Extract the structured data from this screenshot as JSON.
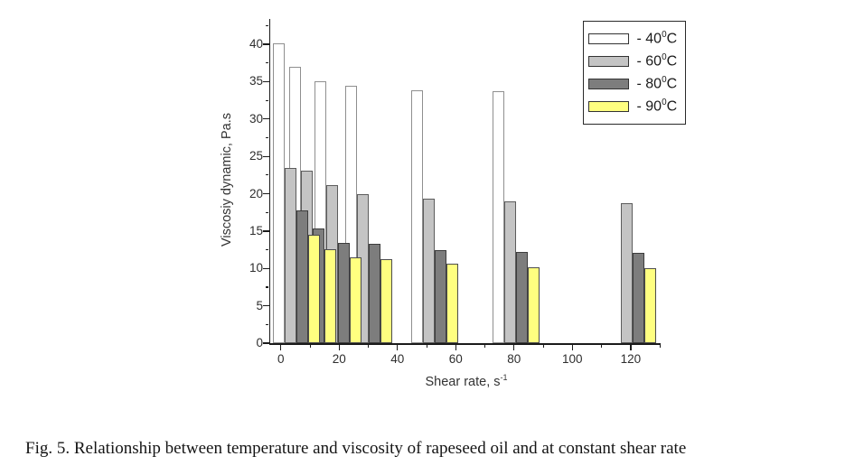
{
  "figure": {
    "caption": "Fig. 5. Relationship between temperature and viscosity of rapeseed oil and at constant shear rate"
  },
  "chart_data": {
    "type": "bar",
    "title": "",
    "xlabel": {
      "base": "Shear rate, s",
      "sup": "-1"
    },
    "ylabel": "Viscosiy dynamic, Pa.s",
    "x": [
      5.4,
      10.8,
      19.5,
      30.2,
      52.8,
      80.5,
      120.5
    ],
    "series": [
      {
        "id": "40C",
        "label": {
          "prefix": "- ",
          "value": "40",
          "sup": "0",
          "suffix": "C"
        },
        "fill": "#ffffff",
        "border": "#8f8f8f",
        "values": [
          40.1,
          37.0,
          35.1,
          34.5,
          33.8,
          33.7,
          null
        ]
      },
      {
        "id": "60C",
        "label": {
          "prefix": "- ",
          "value": "60",
          "sup": "0",
          "suffix": "C"
        },
        "fill": "#c4c4c4",
        "border": "#5c5c5c",
        "values": [
          23.4,
          23.1,
          21.2,
          19.9,
          19.3,
          19.0,
          18.8
        ]
      },
      {
        "id": "80C",
        "label": {
          "prefix": "- ",
          "value": "80",
          "sup": "0",
          "suffix": "C"
        },
        "fill": "#7d7d7d",
        "border": "#3d3d3d",
        "values": [
          17.8,
          15.3,
          13.4,
          13.3,
          12.4,
          12.2,
          12.1
        ]
      },
      {
        "id": "90C",
        "label": {
          "prefix": "- ",
          "value": "90",
          "sup": "0",
          "suffix": "C"
        },
        "fill": "#ffff80",
        "border": "#4d4d4d",
        "values": [
          14.5,
          12.6,
          11.5,
          11.2,
          10.6,
          10.2,
          10.0
        ]
      }
    ],
    "axes": {
      "xlim": [
        -3.7,
        130.3
      ],
      "ylim": [
        0,
        43.2
      ],
      "x_major_ticks": [
        0,
        20,
        40,
        60,
        80,
        100,
        120
      ],
      "x_minor_ticks": [
        10,
        30,
        50,
        70,
        90,
        110,
        130
      ],
      "y_major_ticks": [
        0,
        5,
        10,
        15,
        20,
        25,
        30,
        35,
        40
      ],
      "y_minor_ticks": [
        2.5,
        7.5,
        12.5,
        17.5,
        22.5,
        27.5,
        32.5,
        37.5,
        42.5
      ],
      "grid": false,
      "legend_position": "top-right"
    }
  }
}
